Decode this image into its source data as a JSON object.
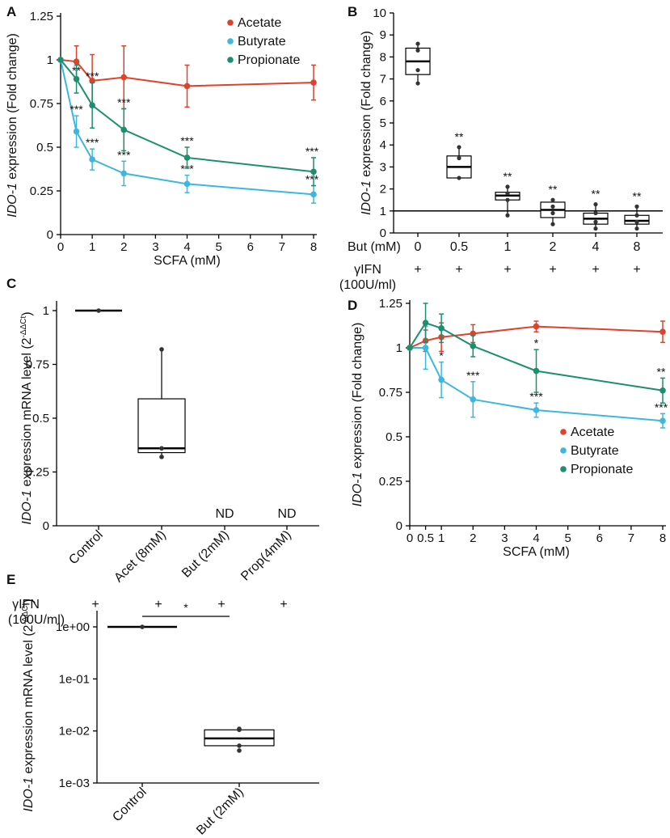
{
  "colors": {
    "acetate": "#e0412a",
    "butyrate": "#3cb7e0",
    "propionate": "#1b8f6e"
  },
  "chart_data": [
    {
      "panel": "A",
      "type": "line",
      "xlabel": "SCFA (mM)",
      "ylabel_italic": "IDO-1",
      "ylabel_rest": " expression (Fold change)",
      "x": [
        0,
        0.5,
        1,
        2,
        4,
        8
      ],
      "xticks": [
        "0",
        "1",
        "2",
        "3",
        "4",
        "5",
        "6",
        "7",
        "8"
      ],
      "yticks": [
        "0",
        "0.25",
        "0.5",
        "0.75",
        "1",
        "1.25"
      ],
      "ylim": [
        0,
        1.25
      ],
      "legend": "top-right",
      "series": [
        {
          "name": "Acetate",
          "color": "acetate",
          "values": [
            1,
            0.99,
            0.88,
            0.9,
            0.85,
            0.87
          ],
          "err": [
            0,
            0.09,
            0.15,
            0.18,
            0.12,
            0.1
          ],
          "stars": [
            "",
            "",
            "",
            "",
            "",
            ""
          ]
        },
        {
          "name": "Butyrate",
          "color": "butyrate",
          "values": [
            1,
            0.59,
            0.43,
            0.35,
            0.29,
            0.23
          ],
          "err": [
            0,
            0.09,
            0.06,
            0.07,
            0.05,
            0.05
          ],
          "stars": [
            "",
            "***",
            "***",
            "***",
            "***",
            "***"
          ]
        },
        {
          "name": "Propionate",
          "color": "propionate",
          "values": [
            1,
            0.89,
            0.74,
            0.6,
            0.44,
            0.36
          ],
          "err": [
            0,
            0.08,
            0.13,
            0.12,
            0.06,
            0.08
          ],
          "stars": [
            "",
            "**",
            "***",
            "***",
            "***",
            "***"
          ]
        }
      ]
    },
    {
      "panel": "B",
      "type": "box",
      "ylabel_italic": "IDO-1",
      "ylabel_rest": " expression (Fold change)",
      "ylim": [
        0,
        10
      ],
      "yticks": [
        "0",
        "1",
        "2",
        "3",
        "4",
        "5",
        "6",
        "7",
        "8",
        "9",
        "10"
      ],
      "reference_line": 1,
      "row_label": "But (mM)",
      "categories": [
        "0",
        "0.5",
        "1",
        "2",
        "4",
        "8"
      ],
      "ifn_label_1": "γIFN",
      "ifn_label_2": "(100U/ml)",
      "ifn_row": [
        "+",
        "+",
        "+",
        "+",
        "+",
        "+"
      ],
      "boxes": [
        {
          "q1": 7.2,
          "median": 7.8,
          "q3": 8.4,
          "min": 6.8,
          "max": 8.6,
          "points": [
            6.8,
            7.4,
            8.3,
            8.6
          ],
          "star": ""
        },
        {
          "q1": 2.5,
          "median": 3.0,
          "q3": 3.5,
          "min": 2.5,
          "max": 3.9,
          "points": [
            2.5,
            3.4,
            3.9
          ],
          "star": "**"
        },
        {
          "q1": 1.5,
          "median": 1.7,
          "q3": 1.85,
          "min": 0.8,
          "max": 2.1,
          "points": [
            0.8,
            1.5,
            1.8,
            2.1
          ],
          "star": "**"
        },
        {
          "q1": 0.7,
          "median": 1.05,
          "q3": 1.4,
          "min": 0.4,
          "max": 1.5,
          "points": [
            0.4,
            0.9,
            1.2,
            1.5
          ],
          "star": "**"
        },
        {
          "q1": 0.4,
          "median": 0.65,
          "q3": 0.9,
          "min": 0.2,
          "max": 1.3,
          "points": [
            0.2,
            0.5,
            0.9,
            1.3
          ],
          "star": "**"
        },
        {
          "q1": 0.4,
          "median": 0.55,
          "q3": 0.8,
          "min": 0.2,
          "max": 1.2,
          "points": [
            0.2,
            0.5,
            0.8,
            1.2
          ],
          "star": "**"
        }
      ]
    },
    {
      "panel": "C",
      "type": "box",
      "ylabel_italic": "IDO-1",
      "ylabel_rest": " expression mRNA level (2",
      "ylabel_sup": "-ΔΔCt",
      "ylabel_end": ")",
      "ylim": [
        0,
        1
      ],
      "yticks": [
        "0",
        "0.25",
        "0.5",
        "0.75",
        "1"
      ],
      "categories": [
        "Control",
        "Acet (8mM)",
        "But (2mM)",
        "Prop(4mM)"
      ],
      "ifn_label_1": "γIFN",
      "ifn_label_2": "(100U/ml)",
      "ifn_row": [
        "+",
        "+",
        "+",
        "+"
      ],
      "not_detected": [
        "",
        "",
        "ND",
        "ND"
      ],
      "boxes": [
        {
          "q1": 1.0,
          "median": 1.0,
          "q3": 1.0,
          "min": 1.0,
          "max": 1.0,
          "points": [
            1.0
          ]
        },
        {
          "q1": 0.34,
          "median": 0.36,
          "q3": 0.59,
          "min": 0.32,
          "max": 0.82,
          "points": [
            0.32,
            0.36,
            0.82
          ]
        },
        null,
        null
      ]
    },
    {
      "panel": "D",
      "type": "line",
      "xlabel": "SCFA (mM)",
      "ylabel_italic": "IDO-1",
      "ylabel_rest": " expression (Fold change)",
      "x": [
        0,
        0.5,
        1,
        2,
        4,
        8
      ],
      "xticks": [
        "0",
        "0.5",
        "1",
        "2",
        "3",
        "4",
        "5",
        "6",
        "7",
        "8"
      ],
      "yticks": [
        "0",
        "0.25",
        "0.5",
        "0.75",
        "1",
        "1.25"
      ],
      "ylim": [
        0,
        1.25
      ],
      "legend": "bottom-right",
      "series": [
        {
          "name": "Acetate",
          "color": "acetate",
          "values": [
            1,
            1.04,
            1.06,
            1.08,
            1.12,
            1.09
          ],
          "err": [
            0,
            0.06,
            0.08,
            0.05,
            0.03,
            0.06
          ],
          "stars": [
            "",
            "",
            "",
            "",
            "",
            ""
          ]
        },
        {
          "name": "Butyrate",
          "color": "butyrate",
          "values": [
            1,
            1.0,
            0.82,
            0.71,
            0.65,
            0.59
          ],
          "err": [
            0,
            0.12,
            0.1,
            0.1,
            0.04,
            0.04
          ],
          "stars": [
            "",
            "",
            "*",
            "***",
            "***",
            "***"
          ]
        },
        {
          "name": "Propionate",
          "color": "propionate",
          "values": [
            1,
            1.14,
            1.11,
            1.01,
            0.87,
            0.76
          ],
          "err": [
            0,
            0.11,
            0.08,
            0.06,
            0.12,
            0.07
          ],
          "stars": [
            "",
            "",
            "",
            "",
            "*",
            "**"
          ]
        }
      ]
    },
    {
      "panel": "E",
      "type": "box",
      "scale": "log",
      "ylabel_italic": "IDO-1",
      "ylabel_rest": " expression mRNA level (2",
      "ylabel_sup": "-ΔΔCt",
      "ylabel_end": ")",
      "ylim": [
        0.001,
        1
      ],
      "yticks": [
        "1e+00",
        "1e-01",
        "1e-02",
        "1e-03"
      ],
      "ytick_values": [
        1,
        0.1,
        0.01,
        0.001
      ],
      "categories": [
        "Control",
        "But (2mM)"
      ],
      "significance": "*",
      "boxes": [
        {
          "q1": 1.0,
          "median": 1.0,
          "q3": 1.0,
          "min": 1.0,
          "max": 1.0,
          "points": [
            1.0
          ]
        },
        {
          "q1": 0.0052,
          "median": 0.0072,
          "q3": 0.0105,
          "min": 0.0042,
          "max": 0.011,
          "points": [
            0.0042,
            0.0052,
            0.0105,
            0.011
          ]
        }
      ]
    }
  ]
}
